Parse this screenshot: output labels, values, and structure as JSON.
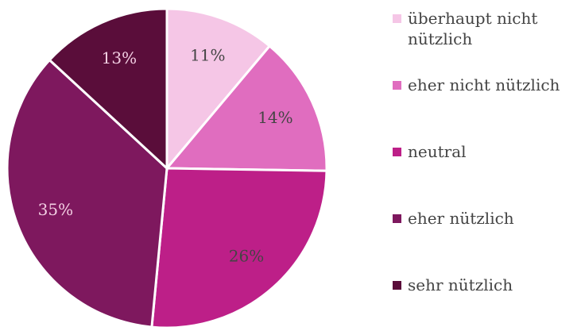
{
  "chart_data": {
    "type": "pie",
    "categories": [
      "überhaupt nicht nützlich",
      "eher nicht nützlich",
      "neutral",
      "eher nützlich",
      "sehr nützlich"
    ],
    "values": [
      11,
      14,
      26,
      35,
      13
    ],
    "value_labels": [
      "11%",
      "14%",
      "26%",
      "35%",
      "13%"
    ],
    "colors": [
      "#f5c6e6",
      "#e06dbf",
      "#bd1f88",
      "#7e185e",
      "#5a0d3a"
    ],
    "legend": "right"
  }
}
